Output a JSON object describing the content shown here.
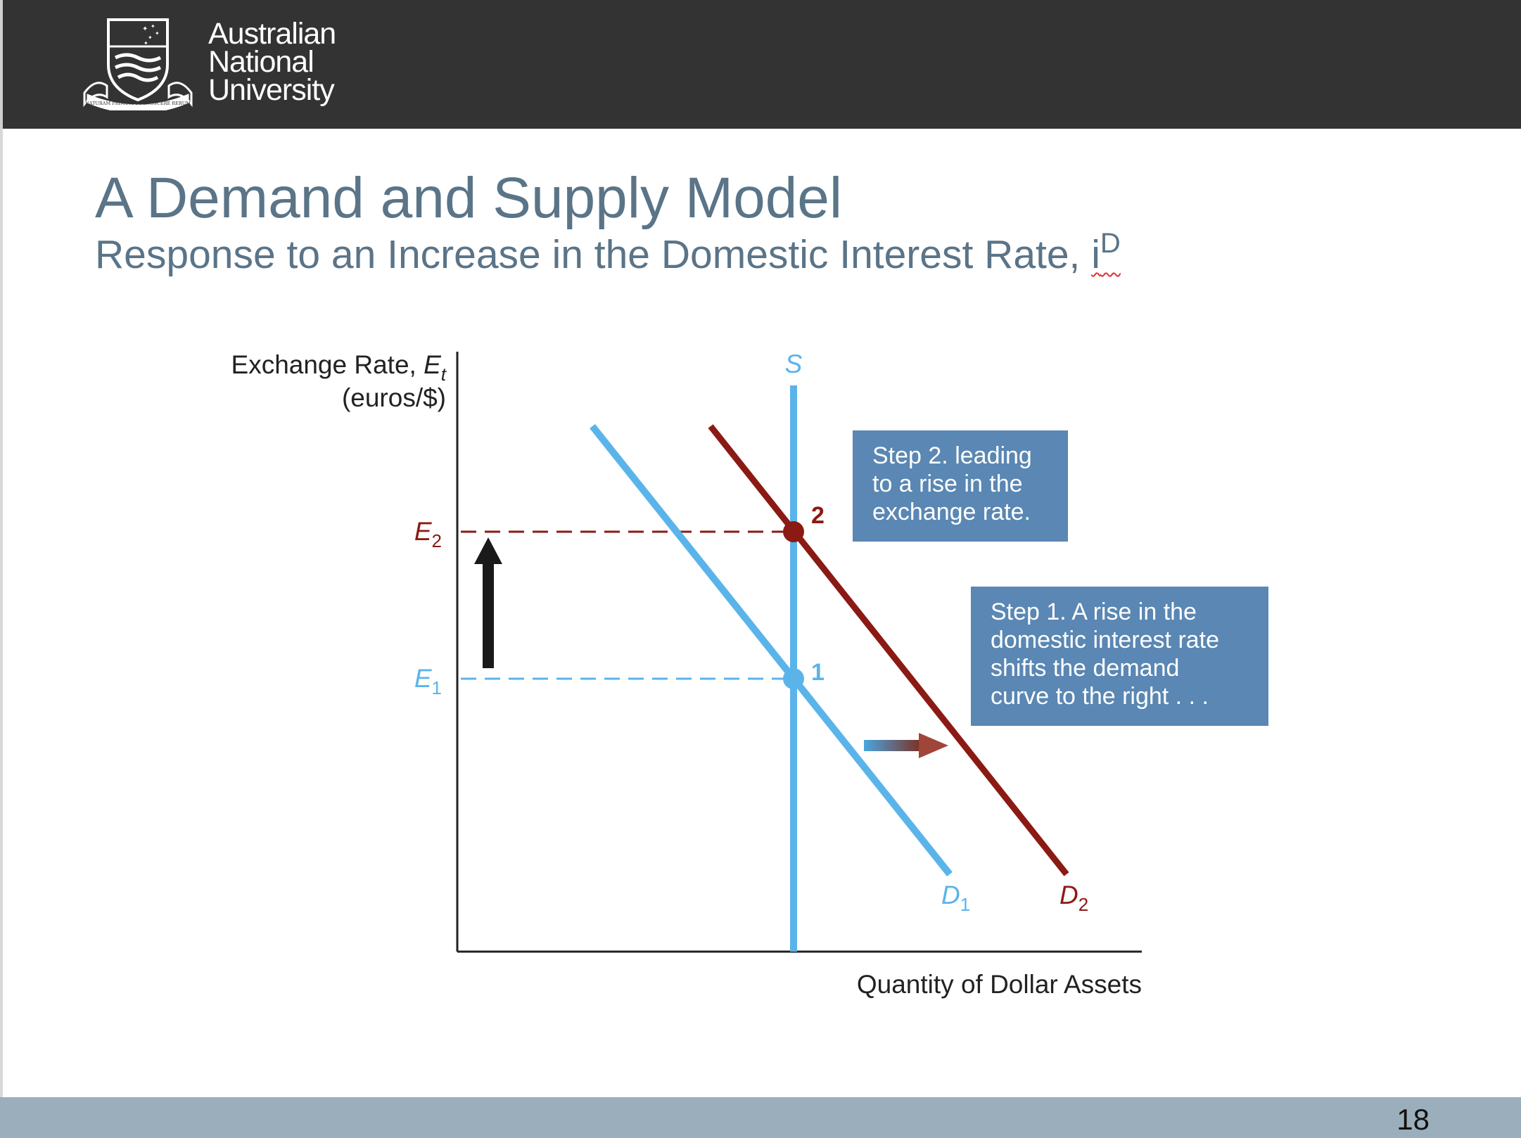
{
  "header": {
    "university_line1": "Australian",
    "university_line2": "National",
    "university_line3": "University",
    "motto": "NATURAM PRIMUM COGNOSCERE RERUM"
  },
  "slide": {
    "title": "A Demand and Supply Model",
    "subtitle": "Response to an Increase in the Domestic Interest Rate, ",
    "subtitle_symbol": "i",
    "subtitle_superscript": "D",
    "page_number": "18"
  },
  "diagram": {
    "y_axis_label_line1": "Exchange Rate, ",
    "y_axis_symbol": "E",
    "y_axis_subscript": "t",
    "y_axis_label_line2": "(euros/$)",
    "x_axis_label": "Quantity of Dollar Assets",
    "supply_label": "S",
    "d1_label": "D",
    "d1_sub": "1",
    "d2_label": "D",
    "d2_sub": "2",
    "e1_label": "E",
    "e1_sub": "1",
    "e2_label": "E",
    "e2_sub": "2",
    "point1_label": "1",
    "point2_label": "2",
    "step1": [
      "Step 1. A rise in the",
      "domestic interest rate",
      "shifts the demand",
      "curve to the right . . ."
    ],
    "step2": [
      "Step 2. leading",
      "to a rise in the",
      "exchange rate."
    ],
    "colors": {
      "blue": "#5ab4ea",
      "red": "#8b1a14",
      "callout": "#5a87b3",
      "title": "#5a7488"
    }
  }
}
